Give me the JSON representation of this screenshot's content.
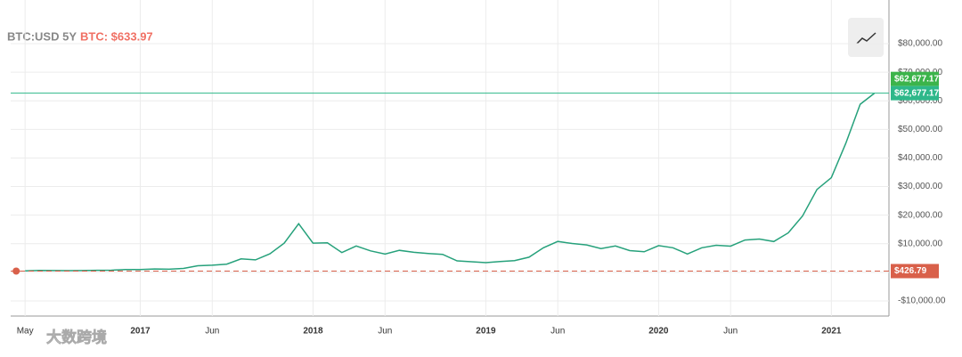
{
  "chart_data": {
    "type": "line",
    "title": "BTC:USD 5Y",
    "subtitle": "BTC: $633.97",
    "watermark": "大数跨境",
    "series": [
      {
        "name": "BTC",
        "color": "#26a17b",
        "x": [
          "2016-05",
          "2016-06",
          "2016-07",
          "2016-08",
          "2016-09",
          "2016-10",
          "2016-11",
          "2016-12",
          "2017-01",
          "2017-02",
          "2017-03",
          "2017-04",
          "2017-05",
          "2017-06",
          "2017-07",
          "2017-08",
          "2017-09",
          "2017-10",
          "2017-11",
          "2017-12",
          "2018-01",
          "2018-02",
          "2018-03",
          "2018-04",
          "2018-05",
          "2018-06",
          "2018-07",
          "2018-08",
          "2018-09",
          "2018-10",
          "2018-11",
          "2018-12",
          "2019-01",
          "2019-02",
          "2019-03",
          "2019-04",
          "2019-05",
          "2019-06",
          "2019-07",
          "2019-08",
          "2019-09",
          "2019-10",
          "2019-11",
          "2019-12",
          "2020-01",
          "2020-02",
          "2020-03",
          "2020-04",
          "2020-05",
          "2020-06",
          "2020-07",
          "2020-08",
          "2020-09",
          "2020-10",
          "2020-11",
          "2020-12",
          "2021-01",
          "2021-02",
          "2021-03",
          "2021-04"
        ],
        "values": [
          530,
          670,
          620,
          570,
          610,
          700,
          740,
          960,
          970,
          1190,
          1070,
          1350,
          2300,
          2480,
          2870,
          4700,
          4340,
          6470,
          10200,
          17000,
          10200,
          10300,
          6900,
          9200,
          7500,
          6400,
          7700,
          7000,
          6600,
          6300,
          4000,
          3700,
          3400,
          3800,
          4100,
          5300,
          8600,
          10800,
          10100,
          9600,
          8300,
          9200,
          7600,
          7200,
          9350,
          8600,
          6400,
          8600,
          9450,
          9140,
          11300,
          11650,
          10780,
          13800,
          19700,
          29000,
          33100,
          45100,
          58800,
          62677.17
        ]
      }
    ],
    "price_lines": [
      {
        "value": 62677.17,
        "labels": [
          "$62,677.17",
          "$62,677.17"
        ],
        "color": "#2eb88a",
        "style": "solid"
      },
      {
        "value": 426.79,
        "labels": [
          "$426.79"
        ],
        "color": "#d9604a",
        "style": "dashed"
      }
    ],
    "xlim": [
      "2016-04",
      "2021-05"
    ],
    "xticks": [
      {
        "value": "2016-05",
        "label": "May"
      },
      {
        "value": "2017-01",
        "label": "2017"
      },
      {
        "value": "2017-06",
        "label": "Jun"
      },
      {
        "value": "2018-01",
        "label": "2018"
      },
      {
        "value": "2018-06",
        "label": "Jun"
      },
      {
        "value": "2019-01",
        "label": "2019"
      },
      {
        "value": "2019-06",
        "label": "Jun"
      },
      {
        "value": "2020-01",
        "label": "2020"
      },
      {
        "value": "2020-06",
        "label": "Jun"
      },
      {
        "value": "2021-01",
        "label": "2021"
      }
    ],
    "ylim": [
      -15300,
      90600
    ],
    "yticks": [
      {
        "value": -10000,
        "label": "-$10,000.00"
      },
      {
        "value": 0,
        "label": "$0.00"
      },
      {
        "value": 10000,
        "label": "$10,000.00"
      },
      {
        "value": 20000,
        "label": "$20,000.00"
      },
      {
        "value": 30000,
        "label": "$30,000.00"
      },
      {
        "value": 40000,
        "label": "$40,000.00"
      },
      {
        "value": 50000,
        "label": "$50,000.00"
      },
      {
        "value": 60000,
        "label": "$60,000.00"
      },
      {
        "value": 70000,
        "label": "$70,000.00"
      },
      {
        "value": 80000,
        "label": "$80,000.00"
      }
    ],
    "grid": true
  }
}
